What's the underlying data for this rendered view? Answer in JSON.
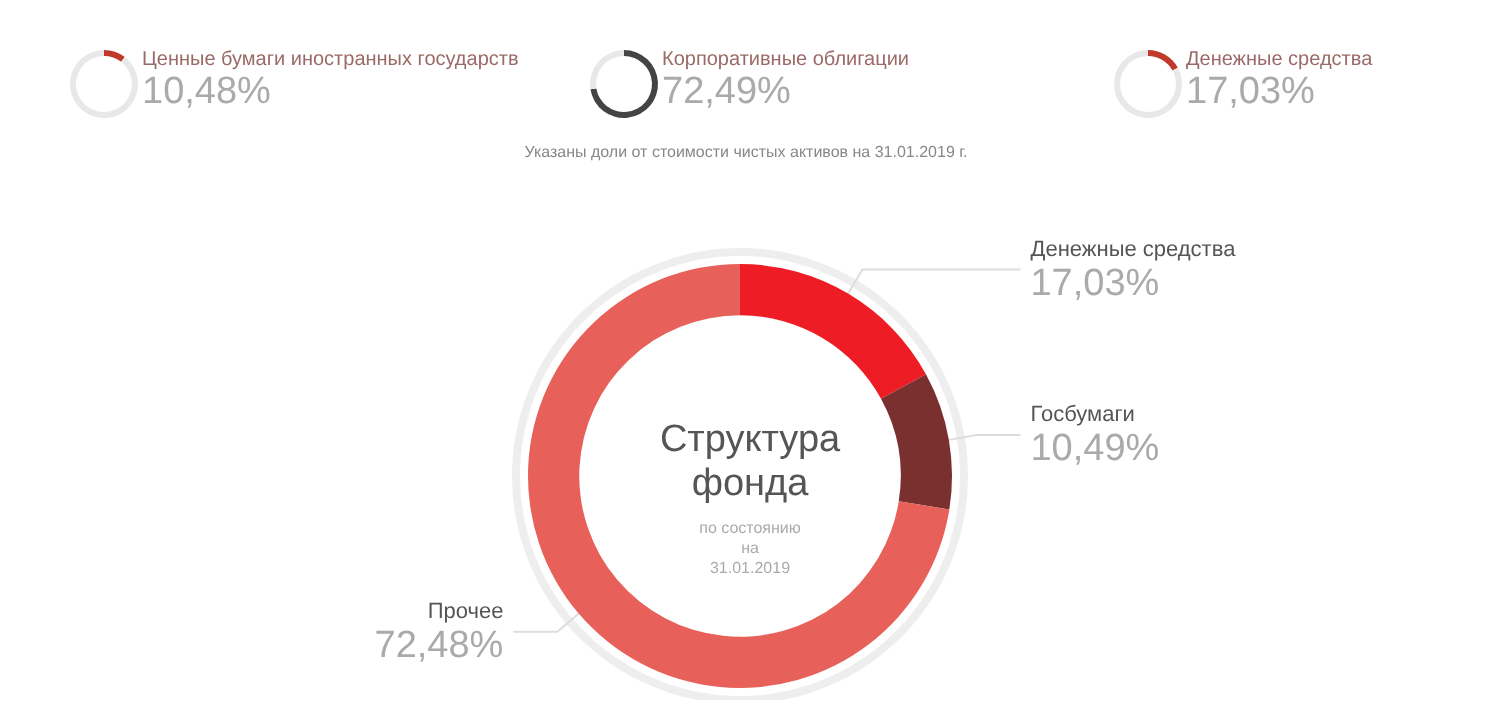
{
  "chart_data": [
    {
      "type": "donut",
      "categories": [
        "Ценные бумаги иностранных государств",
        null
      ],
      "values": [
        10.48,
        89.52
      ],
      "colors": [
        "#c0392b",
        "#e8e8e8"
      ],
      "value_labels": [
        "10,48%",
        null
      ]
    },
    {
      "type": "donut",
      "categories": [
        "Корпоративные облигации",
        null
      ],
      "values": [
        72.49,
        27.51
      ],
      "colors": [
        "#444444",
        "#e8e8e8"
      ],
      "value_labels": [
        "72,49%",
        null
      ]
    },
    {
      "type": "donut",
      "categories": [
        "Денежные средства",
        null
      ],
      "values": [
        17.03,
        82.97
      ],
      "colors": [
        "#c0392b",
        "#e8e8e8"
      ],
      "value_labels": [
        "17,03%",
        null
      ]
    },
    {
      "type": "donut",
      "title": "Структура фонда",
      "subtitle": "по состоянию на 31.01.2019",
      "annotations": [
        "Указаны доли от стоимости чистых активов на 31.01.2019 г."
      ],
      "categories": [
        "Денежные средства",
        "Госбумаги",
        "Прочее"
      ],
      "values": [
        17.03,
        10.49,
        72.48
      ],
      "colors": [
        "#ee1c25",
        "#7b3030",
        "#e8605a"
      ],
      "value_labels": [
        "17,03%",
        "10,49%",
        "72,48%"
      ]
    }
  ]
}
